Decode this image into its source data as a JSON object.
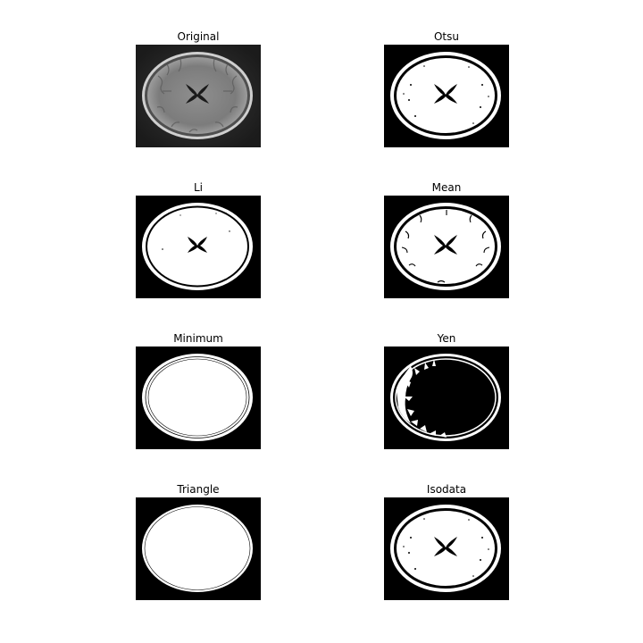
{
  "figure": {
    "panels": [
      {
        "id": "original",
        "title": "Original"
      },
      {
        "id": "otsu",
        "title": "Otsu"
      },
      {
        "id": "li",
        "title": "Li"
      },
      {
        "id": "mean",
        "title": "Mean"
      },
      {
        "id": "minimum",
        "title": "Minimum"
      },
      {
        "id": "yen",
        "title": "Yen"
      },
      {
        "id": "triangle",
        "title": "Triangle"
      },
      {
        "id": "isodata",
        "title": "Isodata"
      }
    ]
  },
  "colors": {
    "background": "#ffffff",
    "mask_on": "#ffffff",
    "mask_off": "#000000",
    "brain_gray": "#8a8a8a"
  }
}
